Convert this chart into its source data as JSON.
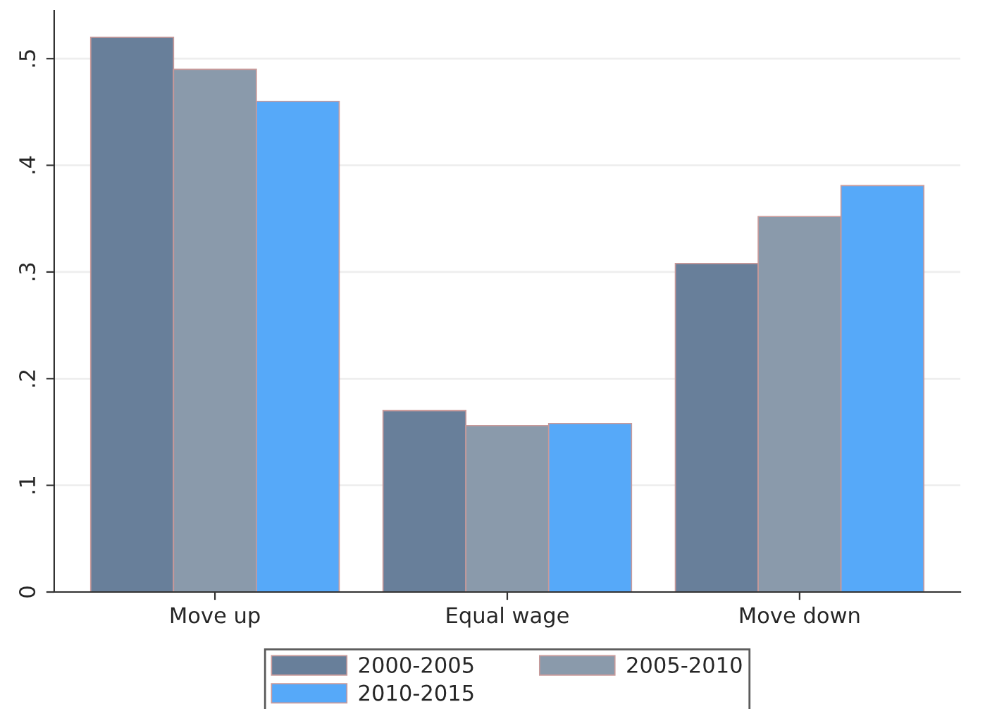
{
  "chart_data": {
    "type": "bar",
    "categories": [
      "Move up",
      "Equal wage",
      "Move down"
    ],
    "series": [
      {
        "name": "2000-2005",
        "color": "#687f9a",
        "values": [
          0.52,
          0.17,
          0.308
        ]
      },
      {
        "name": "2005-2010",
        "color": "#8a9aab",
        "values": [
          0.49,
          0.156,
          0.352
        ]
      },
      {
        "name": "2010-2015",
        "color": "#56a9f9",
        "values": [
          0.46,
          0.158,
          0.381
        ]
      }
    ],
    "ylim": [
      0,
      0.545
    ],
    "yticks": [
      0,
      {
        "value": 0.1,
        "label": ".1"
      },
      {
        "value": 0.2,
        "label": ".2"
      },
      {
        "value": 0.3,
        "label": ".3"
      },
      {
        "value": 0.4,
        "label": ".4"
      },
      {
        "value": 0.5,
        "label": ".5"
      }
    ],
    "grid": "y",
    "legend": "bottom"
  }
}
